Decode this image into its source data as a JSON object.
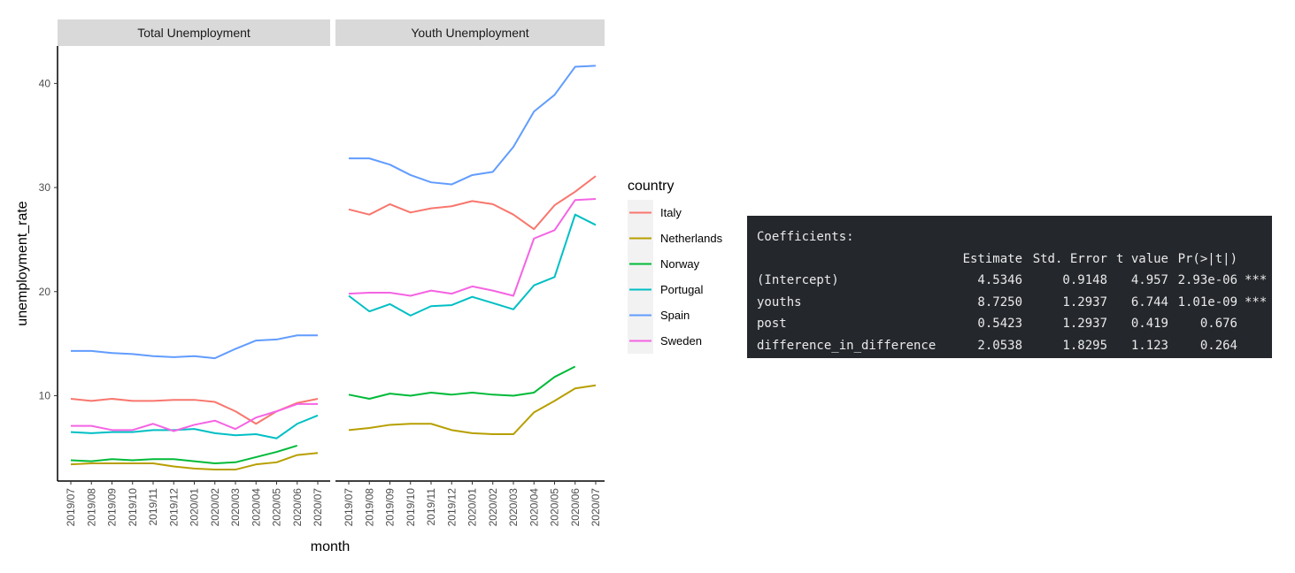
{
  "chart_data": {
    "type": "line",
    "facets": [
      "Total Unemployment",
      "Youth Unemployment"
    ],
    "xlabel": "month",
    "ylabel": "unemployment_rate",
    "x": [
      "2019/07",
      "2019/08",
      "2019/09",
      "2019/10",
      "2019/11",
      "2019/12",
      "2020/01",
      "2020/02",
      "2020/03",
      "2020/04",
      "2020/05",
      "2020/06",
      "2020/07"
    ],
    "ylim": [
      1.8,
      43.6
    ],
    "yticks": [
      10,
      20,
      30,
      40
    ],
    "legend": {
      "title": "country",
      "position": "right"
    },
    "series": [
      {
        "name": "Italy",
        "color": "#F8766D",
        "total": [
          9.7,
          9.5,
          9.7,
          9.5,
          9.5,
          9.6,
          9.6,
          9.4,
          8.5,
          7.3,
          8.5,
          9.3,
          9.7
        ],
        "youth": [
          27.9,
          27.4,
          28.4,
          27.6,
          28.0,
          28.2,
          28.7,
          28.4,
          27.4,
          26.0,
          28.3,
          29.6,
          31.1
        ]
      },
      {
        "name": "Netherlands",
        "color": "#B79F00",
        "total": [
          3.4,
          3.5,
          3.5,
          3.5,
          3.5,
          3.2,
          3.0,
          2.9,
          2.9,
          3.4,
          3.6,
          4.3,
          4.5
        ],
        "youth": [
          6.7,
          6.9,
          7.2,
          7.3,
          7.3,
          6.7,
          6.4,
          6.3,
          6.3,
          8.4,
          9.5,
          10.7,
          11.0
        ]
      },
      {
        "name": "Norway",
        "color": "#00BA38",
        "total": [
          3.8,
          3.7,
          3.9,
          3.8,
          3.9,
          3.9,
          3.7,
          3.5,
          3.6,
          4.1,
          4.6,
          5.2,
          null
        ],
        "youth": [
          10.1,
          9.7,
          10.2,
          10.0,
          10.3,
          10.1,
          10.3,
          10.1,
          10.0,
          10.3,
          11.8,
          12.8,
          null
        ]
      },
      {
        "name": "Portugal",
        "color": "#00BFC4",
        "total": [
          6.5,
          6.4,
          6.5,
          6.5,
          6.7,
          6.7,
          6.8,
          6.4,
          6.2,
          6.3,
          5.9,
          7.3,
          8.1
        ],
        "youth": [
          19.6,
          18.1,
          18.8,
          17.7,
          18.6,
          18.7,
          19.5,
          18.9,
          18.3,
          20.6,
          21.4,
          27.4,
          26.4
        ]
      },
      {
        "name": "Spain",
        "color": "#619CFF",
        "total": [
          14.3,
          14.3,
          14.1,
          14.0,
          13.8,
          13.7,
          13.8,
          13.6,
          14.5,
          15.3,
          15.4,
          15.8,
          15.8
        ],
        "youth": [
          32.8,
          32.8,
          32.2,
          31.2,
          30.5,
          30.3,
          31.2,
          31.5,
          33.9,
          37.3,
          38.9,
          41.6,
          41.7
        ]
      },
      {
        "name": "Sweden",
        "color": "#F564E3",
        "total": [
          7.1,
          7.1,
          6.7,
          6.7,
          7.3,
          6.6,
          7.2,
          7.6,
          6.8,
          7.9,
          8.5,
          9.2,
          9.2
        ],
        "youth": [
          19.8,
          19.9,
          19.9,
          19.6,
          20.1,
          19.8,
          20.5,
          20.1,
          19.6,
          25.1,
          25.9,
          28.8,
          28.9
        ]
      }
    ]
  },
  "regression": {
    "heading": "Coefficients:",
    "columns": [
      "Estimate",
      "Std. Error",
      "t value",
      "Pr(>|t|)"
    ],
    "rows": [
      {
        "term": "(Intercept)",
        "estimate": "4.5346",
        "std_error": "0.9148",
        "t_value": "4.957",
        "p_value": "2.93e-06",
        "signif": "***"
      },
      {
        "term": "youths",
        "estimate": "8.7250",
        "std_error": "1.2937",
        "t_value": "6.744",
        "p_value": "1.01e-09",
        "signif": "***"
      },
      {
        "term": "post",
        "estimate": "0.5423",
        "std_error": "1.2937",
        "t_value": "0.419",
        "p_value": "0.676",
        "signif": ""
      },
      {
        "term": "difference_in_difference",
        "estimate": "2.0538",
        "std_error": "1.8295",
        "t_value": "1.123",
        "p_value": "0.264",
        "signif": ""
      }
    ]
  }
}
